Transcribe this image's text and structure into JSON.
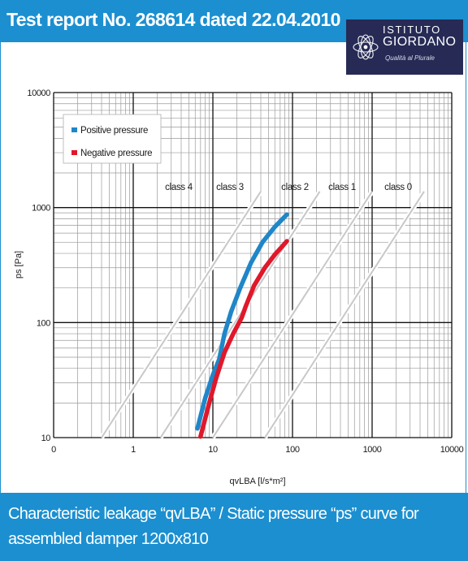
{
  "header": {
    "title": "Test report No. 268614 dated 22.04.2010"
  },
  "logo": {
    "line1": "ISTITUTO",
    "line2": "GIORDANO",
    "line3": "Qualità al Plurale"
  },
  "footer": {
    "caption": "Characteristic leakage “qvLBA” /  Static pressure “ps” curve for assembled damper 1200x810"
  },
  "colors": {
    "accent": "#1b8fd0",
    "positive": "#1f86c8",
    "negative": "#e0182b",
    "class_lines": "#c8c8c8"
  },
  "chart_data": {
    "type": "line",
    "xscale": "log",
    "yscale": "log",
    "xlabel": "qvLBA [l/s*m²]",
    "ylabel": "ps [Pa]",
    "xlim": [
      0.1,
      10000
    ],
    "ylim": [
      10,
      10000
    ],
    "xticks": [
      "0",
      "1",
      "10",
      "100",
      "1000",
      "10000"
    ],
    "yticks": [
      "10",
      "100",
      "1000",
      "10000"
    ],
    "grid": true,
    "legend_position": "top-left",
    "series": [
      {
        "name": "Positive pressure",
        "color": "#1f86c8",
        "points": [
          [
            6.4,
            12
          ],
          [
            8,
            22
          ],
          [
            10,
            35
          ],
          [
            12,
            48
          ],
          [
            14,
            80
          ],
          [
            17,
            125
          ],
          [
            22,
            200
          ],
          [
            30,
            330
          ],
          [
            42,
            500
          ],
          [
            60,
            680
          ],
          [
            85,
            870
          ]
        ]
      },
      {
        "name": "Negative pressure",
        "color": "#e0182b",
        "points": [
          [
            7,
            10.2
          ],
          [
            9,
            20
          ],
          [
            11,
            33
          ],
          [
            14,
            55
          ],
          [
            18,
            80
          ],
          [
            23,
            110
          ],
          [
            26,
            140
          ],
          [
            33,
            210
          ],
          [
            45,
            300
          ],
          [
            60,
            390
          ],
          [
            85,
            510
          ]
        ]
      }
    ],
    "class_boundaries": [
      {
        "label": "class 4",
        "points": [
          [
            0.4,
            10
          ],
          [
            40,
            1380
          ]
        ]
      },
      {
        "label": "class 3",
        "points": [
          [
            2.2,
            10
          ],
          [
            220,
            1380
          ]
        ]
      },
      {
        "label": "class 2",
        "points": [
          [
            10,
            10
          ],
          [
            1000,
            1380
          ]
        ]
      },
      {
        "label": "class 1",
        "points": [
          [
            45,
            10
          ],
          [
            4500,
            1380
          ]
        ]
      }
    ],
    "class_labels": [
      "class 4",
      "class 3",
      "class 2",
      "class 1",
      "class 0"
    ]
  }
}
